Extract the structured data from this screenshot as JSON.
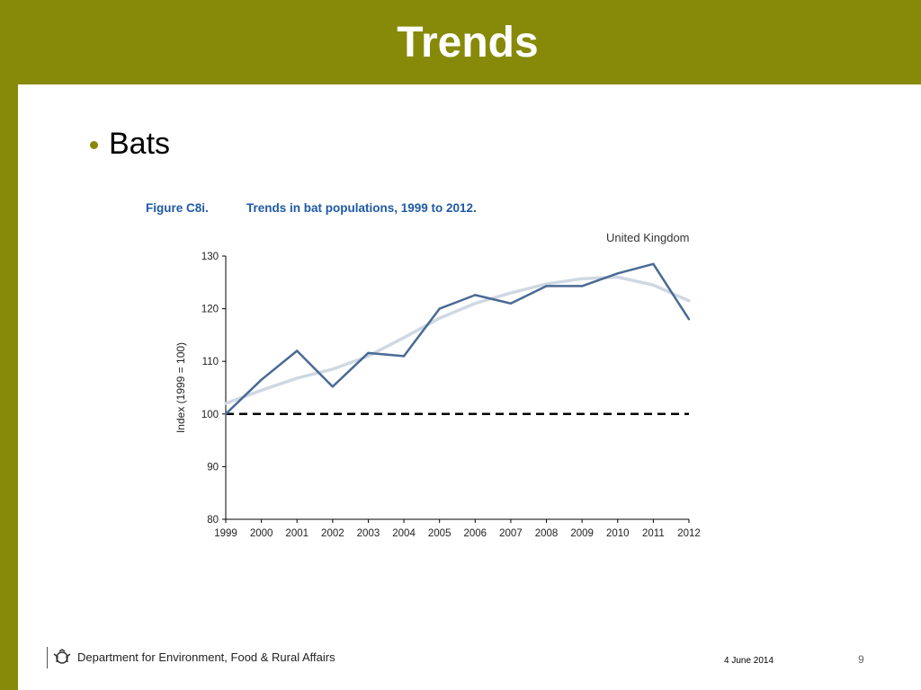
{
  "slide": {
    "title": "Trends",
    "bullet": "Bats",
    "footer_org": "Department for Environment, Food & Rural Affairs",
    "footer_date": "4 June 2014",
    "page_number": "9"
  },
  "colors": {
    "header": "#868a08",
    "series": "#4a6a94",
    "smoothed": "#cfd8e3",
    "figure_title": "#1f5aa6"
  },
  "chart_data": {
    "type": "line",
    "figure_label": "Figure C8i.",
    "title": "Trends in bat populations, 1999 to 2012.",
    "region": "United Kingdom",
    "xlabel": "",
    "ylabel": "Index (1999 = 100)",
    "ylim": [
      80,
      130
    ],
    "yticks": [
      80,
      90,
      100,
      110,
      120,
      130
    ],
    "baseline": 100,
    "grid": false,
    "x": [
      "1999",
      "2000",
      "2001",
      "2002",
      "2003",
      "2004",
      "2005",
      "2006",
      "2007",
      "2008",
      "2009",
      "2010",
      "2011",
      "2012"
    ],
    "series": [
      {
        "values": [
          100,
          106.5,
          112,
          105.2,
          111.6,
          111,
          120,
          122.6,
          121,
          124.3,
          124.3,
          126.7,
          128.5,
          118
        ]
      },
      {
        "values": [
          102,
          104.5,
          106.8,
          108.5,
          111,
          114.5,
          118.2,
          121,
          123,
          124.7,
          125.7,
          126,
          124.5,
          121.5
        ]
      }
    ]
  }
}
